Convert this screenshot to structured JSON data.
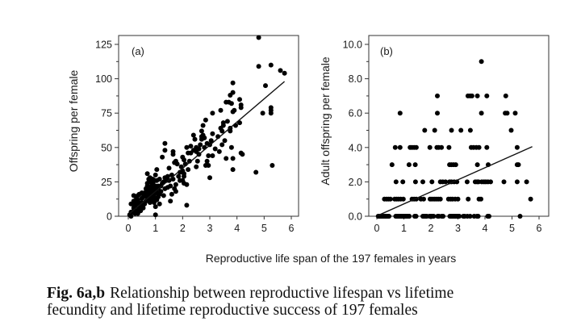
{
  "caption": {
    "label": "Fig. 6a,b",
    "text_line1": "Relationship between reproductive lifespan vs lifetime",
    "text_line2": "fecundity and lifetime reproductive success of 197 females"
  },
  "shared_xlabel": "Reproductive life span of the 197 females in years",
  "chart_data": [
    {
      "type": "scatter",
      "panel": "(a)",
      "title": "",
      "xlabel": "Reproductive life span of the 197 females in years",
      "ylabel": "Offspring per female",
      "xlim": [
        0,
        6
      ],
      "ylim": [
        0,
        125
      ],
      "xticks": [
        "0",
        "1",
        "2",
        "3",
        "4",
        "5",
        "6"
      ],
      "yticks": [
        "0",
        "25",
        "50",
        "75",
        "100",
        "125"
      ],
      "grid": false,
      "regression_line": {
        "x": [
          0.05,
          5.75
        ],
        "y": [
          2,
          98
        ]
      },
      "points": [
        [
          4.8,
          130
        ],
        [
          4.8,
          109
        ],
        [
          5.25,
          110
        ],
        [
          5.6,
          106
        ],
        [
          5.75,
          104
        ],
        [
          5.05,
          95
        ],
        [
          4.95,
          75
        ],
        [
          5.25,
          79
        ],
        [
          5.25,
          77
        ],
        [
          5.25,
          75
        ],
        [
          5.3,
          37
        ],
        [
          4.7,
          32
        ],
        [
          3.85,
          97
        ],
        [
          3.85,
          90
        ],
        [
          3.75,
          88
        ],
        [
          3.8,
          82
        ],
        [
          3.7,
          83
        ],
        [
          3.6,
          83
        ],
        [
          3.65,
          69
        ],
        [
          3.5,
          66
        ],
        [
          3.9,
          77
        ],
        [
          3.85,
          76
        ],
        [
          3.95,
          66
        ],
        [
          4.1,
          85
        ],
        [
          4.15,
          81
        ],
        [
          4.15,
          79
        ],
        [
          4.1,
          68
        ],
        [
          4.15,
          46
        ],
        [
          4.2,
          45
        ],
        [
          3.8,
          50
        ],
        [
          3.85,
          42
        ],
        [
          3.85,
          34
        ],
        [
          3.75,
          64
        ],
        [
          3.75,
          62
        ],
        [
          3.4,
          77
        ],
        [
          3.4,
          64
        ],
        [
          3.45,
          52
        ],
        [
          3.35,
          47
        ],
        [
          3.5,
          68
        ],
        [
          3.6,
          42
        ],
        [
          3.1,
          75
        ],
        [
          3.1,
          60
        ],
        [
          3.0,
          52
        ],
        [
          2.95,
          44
        ],
        [
          3.1,
          44
        ],
        [
          2.9,
          40
        ],
        [
          2.95,
          37
        ],
        [
          3.0,
          28
        ],
        [
          2.85,
          70
        ],
        [
          2.75,
          66
        ],
        [
          2.7,
          62
        ],
        [
          2.75,
          59
        ],
        [
          2.8,
          57
        ],
        [
          2.7,
          56
        ],
        [
          2.65,
          52
        ],
        [
          2.8,
          50
        ],
        [
          2.6,
          49
        ],
        [
          2.85,
          37
        ],
        [
          2.7,
          58
        ],
        [
          2.9,
          53
        ],
        [
          2.4,
          59
        ],
        [
          2.45,
          56
        ],
        [
          2.5,
          47
        ],
        [
          2.3,
          51
        ],
        [
          2.4,
          48
        ],
        [
          2.5,
          36
        ],
        [
          2.2,
          46
        ],
        [
          2.15,
          50
        ],
        [
          2.2,
          34
        ],
        [
          2.15,
          23
        ],
        [
          2.15,
          8
        ],
        [
          2.0,
          43
        ],
        [
          2.05,
          41
        ],
        [
          1.95,
          36
        ],
        [
          2.0,
          33
        ],
        [
          2.05,
          31
        ],
        [
          2.0,
          26
        ],
        [
          2.05,
          24
        ],
        [
          1.9,
          26
        ],
        [
          1.85,
          29
        ],
        [
          1.65,
          47
        ],
        [
          1.65,
          45
        ],
        [
          1.75,
          40
        ],
        [
          1.7,
          39
        ],
        [
          1.65,
          27
        ],
        [
          1.75,
          23
        ],
        [
          1.7,
          20
        ],
        [
          1.6,
          30
        ],
        [
          1.75,
          18
        ],
        [
          1.5,
          35
        ],
        [
          1.45,
          29
        ],
        [
          1.4,
          26
        ],
        [
          1.45,
          21
        ],
        [
          1.55,
          11
        ],
        [
          1.35,
          53
        ],
        [
          1.35,
          48
        ],
        [
          1.25,
          43
        ],
        [
          1.3,
          25
        ],
        [
          1.35,
          20
        ],
        [
          1.3,
          15
        ],
        [
          1.2,
          22
        ],
        [
          1.15,
          27
        ],
        [
          1.1,
          22
        ],
        [
          1.1,
          20
        ],
        [
          1.05,
          34
        ],
        [
          1.05,
          26
        ],
        [
          1.05,
          17
        ],
        [
          1.1,
          14
        ],
        [
          1.15,
          9
        ],
        [
          1.0,
          26
        ],
        [
          1.0,
          22
        ],
        [
          1.0,
          18
        ],
        [
          0.95,
          16
        ],
        [
          0.95,
          14
        ],
        [
          0.9,
          12
        ],
        [
          0.95,
          10
        ],
        [
          1.0,
          7
        ],
        [
          1.0,
          1
        ],
        [
          0.9,
          24
        ],
        [
          0.85,
          20
        ],
        [
          0.85,
          16
        ],
        [
          0.85,
          14
        ],
        [
          0.8,
          12
        ],
        [
          0.8,
          10
        ],
        [
          0.75,
          27
        ],
        [
          0.7,
          31
        ],
        [
          0.7,
          24
        ],
        [
          0.7,
          22
        ],
        [
          0.75,
          18
        ],
        [
          0.75,
          16
        ],
        [
          0.7,
          14
        ],
        [
          0.7,
          12
        ],
        [
          0.65,
          20
        ],
        [
          0.65,
          17
        ],
        [
          0.65,
          15
        ],
        [
          0.6,
          17
        ],
        [
          0.55,
          14
        ],
        [
          0.5,
          13
        ],
        [
          0.5,
          10
        ],
        [
          0.45,
          8
        ],
        [
          0.4,
          16
        ],
        [
          0.35,
          15
        ],
        [
          0.35,
          12
        ],
        [
          0.4,
          10
        ],
        [
          0.3,
          13
        ],
        [
          0.3,
          9
        ],
        [
          0.25,
          10
        ],
        [
          0.25,
          7
        ],
        [
          0.2,
          15
        ],
        [
          0.15,
          9
        ],
        [
          0.2,
          6
        ],
        [
          0.2,
          4
        ],
        [
          0.15,
          3
        ],
        [
          0.1,
          3
        ],
        [
          0.05,
          1
        ],
        [
          0.1,
          0
        ],
        [
          0.1,
          9
        ],
        [
          0.3,
          4
        ],
        [
          0.25,
          2
        ],
        [
          0.4,
          6
        ],
        [
          0.85,
          22
        ],
        [
          0.9,
          27
        ],
        [
          0.8,
          25
        ],
        [
          0.95,
          20
        ],
        [
          1.2,
          18
        ],
        [
          1.25,
          24
        ],
        [
          1.5,
          26
        ],
        [
          1.8,
          38
        ],
        [
          1.9,
          32
        ],
        [
          2.1,
          38
        ],
        [
          2.3,
          46
        ],
        [
          2.5,
          50
        ],
        [
          2.6,
          45
        ],
        [
          3.2,
          49
        ],
        [
          3.3,
          58
        ],
        [
          3.45,
          62
        ],
        [
          3.55,
          55
        ],
        [
          3.05,
          55
        ],
        [
          2.55,
          40
        ],
        [
          1.55,
          22
        ],
        [
          0.6,
          9
        ],
        [
          0.55,
          6
        ],
        [
          0.45,
          4
        ],
        [
          0.35,
          2
        ],
        [
          1.05,
          12
        ],
        [
          1.15,
          16
        ],
        [
          0.9,
          18
        ],
        [
          0.8,
          28
        ],
        [
          0.75,
          20
        ],
        [
          1.0,
          30
        ],
        [
          2.25,
          40
        ],
        [
          2.05,
          29
        ],
        [
          1.35,
          28
        ],
        [
          1.6,
          16
        ],
        [
          0.5,
          17
        ],
        [
          0.65,
          11
        ],
        [
          0.2,
          11
        ]
      ]
    },
    {
      "type": "scatter",
      "panel": "(b)",
      "title": "",
      "xlabel": "Reproductive life span of the 197 females in years",
      "ylabel": "Adult offspring per female",
      "xlim": [
        0,
        6
      ],
      "ylim": [
        0,
        10
      ],
      "xticks": [
        "0",
        "1",
        "2",
        "3",
        "4",
        "5",
        "6"
      ],
      "yticks": [
        "0.0",
        "2.0",
        "4.0",
        "6.0",
        "8.0",
        "10.0"
      ],
      "grid": false,
      "regression_line": {
        "x": [
          0.05,
          5.75
        ],
        "y": [
          0.05,
          4.05
        ]
      },
      "points": [
        [
          3.87,
          9
        ],
        [
          2.24,
          7
        ],
        [
          3.37,
          7
        ],
        [
          3.45,
          7
        ],
        [
          3.52,
          7
        ],
        [
          3.72,
          7
        ],
        [
          4.07,
          7
        ],
        [
          4.77,
          7
        ],
        [
          0.86,
          6
        ],
        [
          2.24,
          6
        ],
        [
          3.87,
          6
        ],
        [
          4.75,
          6
        ],
        [
          4.82,
          6
        ],
        [
          5.12,
          6
        ],
        [
          1.77,
          5
        ],
        [
          2.14,
          5
        ],
        [
          2.76,
          5
        ],
        [
          3.11,
          5
        ],
        [
          3.46,
          5
        ],
        [
          4.97,
          5
        ],
        [
          0.68,
          4
        ],
        [
          0.86,
          4
        ],
        [
          1.23,
          4
        ],
        [
          1.3,
          4
        ],
        [
          1.38,
          4
        ],
        [
          1.46,
          4
        ],
        [
          1.96,
          4
        ],
        [
          2.22,
          4
        ],
        [
          2.29,
          4
        ],
        [
          2.39,
          4
        ],
        [
          2.67,
          4
        ],
        [
          3.49,
          4
        ],
        [
          3.58,
          4
        ],
        [
          3.68,
          4
        ],
        [
          3.78,
          4
        ],
        [
          4.07,
          4
        ],
        [
          5.19,
          4
        ],
        [
          0.56,
          3
        ],
        [
          1.19,
          3
        ],
        [
          1.42,
          3
        ],
        [
          2.69,
          3
        ],
        [
          2.76,
          3
        ],
        [
          2.84,
          3
        ],
        [
          2.92,
          3
        ],
        [
          3.72,
          3
        ],
        [
          4.12,
          3
        ],
        [
          5.19,
          3
        ],
        [
          5.24,
          3
        ],
        [
          0.71,
          2
        ],
        [
          0.96,
          2
        ],
        [
          1.43,
          2
        ],
        [
          1.7,
          2
        ],
        [
          2.04,
          2
        ],
        [
          2.35,
          2
        ],
        [
          2.44,
          2
        ],
        [
          2.54,
          2
        ],
        [
          2.69,
          2
        ],
        [
          2.76,
          2
        ],
        [
          2.86,
          2
        ],
        [
          2.96,
          2
        ],
        [
          3.34,
          2
        ],
        [
          3.64,
          2
        ],
        [
          3.71,
          2
        ],
        [
          3.76,
          2
        ],
        [
          3.88,
          2
        ],
        [
          3.96,
          2
        ],
        [
          4.03,
          2
        ],
        [
          4.11,
          2
        ],
        [
          4.21,
          2
        ],
        [
          4.7,
          2
        ],
        [
          5.19,
          2
        ],
        [
          5.54,
          2
        ],
        [
          0.28,
          1
        ],
        [
          0.36,
          1
        ],
        [
          0.43,
          1
        ],
        [
          0.5,
          1
        ],
        [
          0.66,
          1
        ],
        [
          0.73,
          1
        ],
        [
          0.8,
          1
        ],
        [
          0.88,
          1
        ],
        [
          0.98,
          1
        ],
        [
          1.3,
          1
        ],
        [
          1.38,
          1
        ],
        [
          1.46,
          1
        ],
        [
          1.63,
          1
        ],
        [
          1.73,
          1
        ],
        [
          1.97,
          1
        ],
        [
          2.04,
          1
        ],
        [
          2.12,
          1
        ],
        [
          2.19,
          1
        ],
        [
          2.27,
          1
        ],
        [
          2.35,
          1
        ],
        [
          2.65,
          1
        ],
        [
          2.73,
          1
        ],
        [
          2.8,
          1
        ],
        [
          2.9,
          1
        ],
        [
          3.0,
          1
        ],
        [
          3.38,
          1
        ],
        [
          3.78,
          1
        ],
        [
          3.85,
          1
        ],
        [
          5.69,
          1
        ],
        [
          0.05,
          0
        ],
        [
          0.1,
          0
        ],
        [
          0.15,
          0
        ],
        [
          0.2,
          0
        ],
        [
          0.25,
          0
        ],
        [
          0.3,
          0
        ],
        [
          0.35,
          0
        ],
        [
          0.4,
          0
        ],
        [
          0.45,
          0
        ],
        [
          0.7,
          0
        ],
        [
          0.75,
          0
        ],
        [
          0.8,
          0
        ],
        [
          0.85,
          0
        ],
        [
          0.9,
          0
        ],
        [
          0.95,
          0
        ],
        [
          1.0,
          0
        ],
        [
          1.05,
          0
        ],
        [
          1.1,
          0
        ],
        [
          1.15,
          0
        ],
        [
          1.2,
          0
        ],
        [
          1.4,
          0
        ],
        [
          1.45,
          0
        ],
        [
          1.7,
          0
        ],
        [
          1.75,
          0
        ],
        [
          1.8,
          0
        ],
        [
          1.85,
          0
        ],
        [
          1.95,
          0
        ],
        [
          2.0,
          0
        ],
        [
          2.05,
          0
        ],
        [
          2.1,
          0
        ],
        [
          2.25,
          0
        ],
        [
          2.3,
          0
        ],
        [
          2.4,
          0
        ],
        [
          2.45,
          0
        ],
        [
          2.7,
          0
        ],
        [
          2.75,
          0
        ],
        [
          2.8,
          0
        ],
        [
          2.85,
          0
        ],
        [
          2.9,
          0
        ],
        [
          2.95,
          0
        ],
        [
          3.0,
          0
        ],
        [
          3.05,
          0
        ],
        [
          3.2,
          0
        ],
        [
          3.25,
          0
        ],
        [
          3.35,
          0
        ],
        [
          3.45,
          0
        ],
        [
          3.6,
          0
        ],
        [
          3.7,
          0
        ],
        [
          3.75,
          0
        ],
        [
          4.1,
          0
        ],
        [
          4.15,
          0
        ],
        [
          5.3,
          0
        ]
      ]
    }
  ]
}
